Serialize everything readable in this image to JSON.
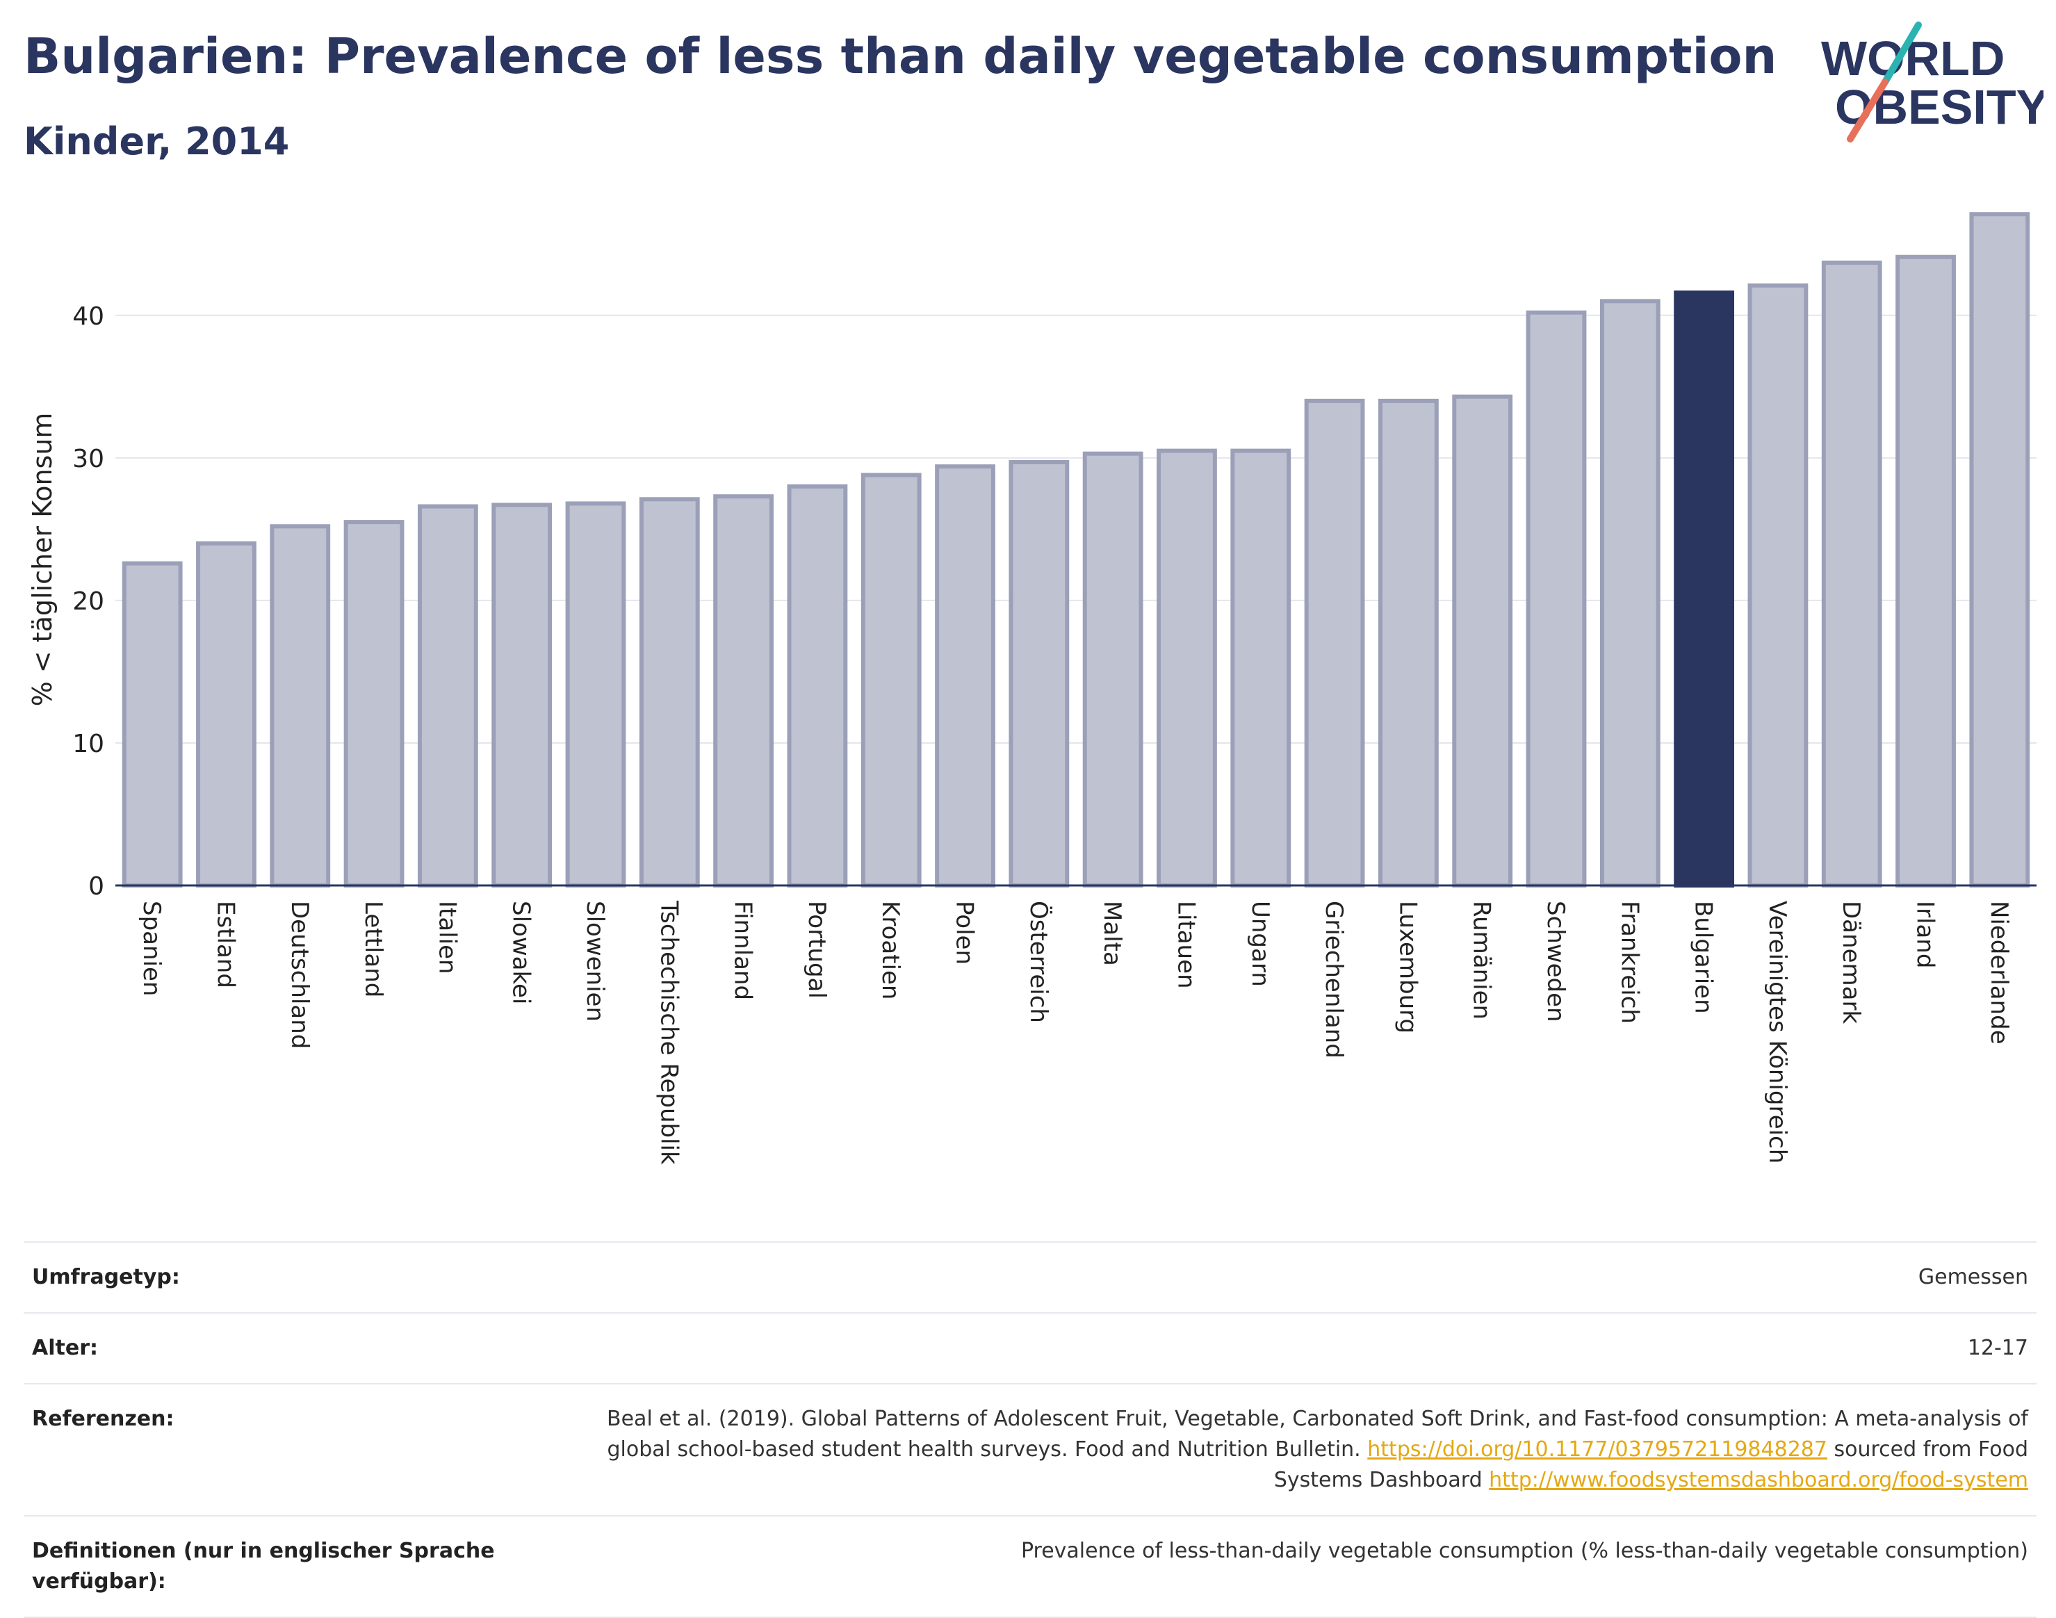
{
  "header": {
    "title": "Bulgarien: Prevalence of less than daily vegetable consumption",
    "subtitle": "Kinder, 2014"
  },
  "logo": {
    "line1": "WORLD",
    "line2": "OBESITY",
    "accent_colors": [
      "#2ab3b1",
      "#e8705a"
    ]
  },
  "colors": {
    "highlight": "#2a3560",
    "bar": "#bfc2d0",
    "bar_border": "#9ba0b8",
    "axis": "#2a3560",
    "grid": "#e4e6ed"
  },
  "chart_data": {
    "type": "bar",
    "ylabel": "% < täglicher Konsum",
    "xlabel": "",
    "ylim": [
      0,
      47.5
    ],
    "yticks": [
      0,
      10,
      20,
      30,
      40
    ],
    "grid": true,
    "highlight_category": "Bulgarien",
    "categories": [
      "Spanien",
      "Estland",
      "Deutschland",
      "Lettland",
      "Italien",
      "Slowakei",
      "Slowenien",
      "Tschechische Republik",
      "Finnland",
      "Portugal",
      "Kroatien",
      "Polen",
      "Österreich",
      "Malta",
      "Litauen",
      "Ungarn",
      "Griechenland",
      "Luxemburg",
      "Rumänien",
      "Schweden",
      "Frankreich",
      "Bulgarien",
      "Vereinigtes Königreich",
      "Dänemark",
      "Irland",
      "Niederlande"
    ],
    "values": [
      22.6,
      24.0,
      25.2,
      25.5,
      26.6,
      26.7,
      26.8,
      27.1,
      27.3,
      28.0,
      28.8,
      29.4,
      29.7,
      30.3,
      30.5,
      30.5,
      34.0,
      34.0,
      34.3,
      40.2,
      41.0,
      41.6,
      42.1,
      43.7,
      44.1,
      47.1
    ]
  },
  "meta": {
    "survey_type_label": "Umfragetyp:",
    "survey_type_value": "Gemessen",
    "age_label": "Alter:",
    "age_value": "12-17",
    "references_label": "Referenzen:",
    "references_text": "Beal et al. (2019). Global Patterns of Adolescent Fruit, Vegetable, Carbonated Soft Drink, and Fast-food consumption: A meta-analysis of global school-based student health surveys. Food and Nutrition Bulletin.",
    "references_link1": "https://doi.org/10.1177/0379572119848287",
    "references_mid": "sourced from Food Systems Dashboard",
    "references_link2": "http://www.foodsystemsdashboard.org/food-system",
    "definitions_label": "Definitionen (nur in englischer Sprache verfügbar):",
    "definitions_value": "Prevalence of less-than-daily vegetable consumption (% less-than-daily vegetable consumption)"
  }
}
